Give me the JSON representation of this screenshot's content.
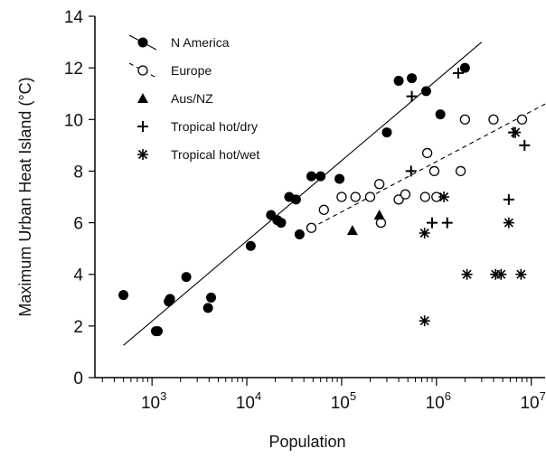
{
  "chart_data": {
    "type": "scatter",
    "title": "",
    "xlabel": "Population",
    "ylabel": "Maximum Urban Heat Island (°C)",
    "x_scale": "log",
    "xlim": [
      250,
      14000000
    ],
    "ylim": [
      0,
      14
    ],
    "x_ticks": [
      {
        "value": 1000,
        "base": "10",
        "exp": "3"
      },
      {
        "value": 10000,
        "base": "10",
        "exp": "4"
      },
      {
        "value": 100000,
        "base": "10",
        "exp": "5"
      },
      {
        "value": 1000000,
        "base": "10",
        "exp": "6"
      },
      {
        "value": 10000000,
        "base": "10",
        "exp": "7"
      }
    ],
    "y_ticks": [
      "0",
      "2",
      "4",
      "6",
      "8",
      "10",
      "12",
      "14"
    ],
    "grid": false,
    "legend_position": "top-left",
    "series": [
      {
        "name": "N America",
        "marker": "filled-circle",
        "points": [
          [
            500,
            3.2
          ],
          [
            1100,
            1.8
          ],
          [
            1150,
            1.8
          ],
          [
            1500,
            2.95
          ],
          [
            1550,
            3.05
          ],
          [
            2300,
            3.9
          ],
          [
            3900,
            2.7
          ],
          [
            4200,
            3.1
          ],
          [
            11000,
            5.1
          ],
          [
            18000,
            6.3
          ],
          [
            21000,
            6.1
          ],
          [
            23000,
            6.0
          ],
          [
            28000,
            7.0
          ],
          [
            33000,
            6.9
          ],
          [
            36000,
            5.55
          ],
          [
            48000,
            7.8
          ],
          [
            60000,
            7.8
          ],
          [
            95000,
            7.7
          ],
          [
            300000,
            9.5
          ],
          [
            400000,
            11.5
          ],
          [
            550000,
            11.6
          ],
          [
            780000,
            11.1
          ],
          [
            1100000,
            10.2
          ],
          [
            2000000,
            12.0
          ]
        ],
        "trend": {
          "x": [
            500,
            3000000
          ],
          "y": [
            1.25,
            13.0
          ],
          "style": "solid"
        }
      },
      {
        "name": "Europe",
        "marker": "open-circle",
        "points": [
          [
            48000,
            5.8
          ],
          [
            65000,
            6.5
          ],
          [
            100000,
            7.0
          ],
          [
            140000,
            7.0
          ],
          [
            200000,
            7.0
          ],
          [
            250000,
            7.5
          ],
          [
            260000,
            6.0
          ],
          [
            400000,
            6.9
          ],
          [
            470000,
            7.1
          ],
          [
            760000,
            7.0
          ],
          [
            800000,
            8.7
          ],
          [
            950000,
            8.0
          ],
          [
            1000000,
            7.0
          ],
          [
            1800000,
            8.0
          ],
          [
            2000000,
            10.0
          ],
          [
            4000000,
            10.0
          ],
          [
            8000000,
            10.0
          ]
        ],
        "trend": {
          "x": [
            48000,
            14000000
          ],
          "y": [
            5.8,
            10.6
          ],
          "style": "dashed"
        }
      },
      {
        "name": "Aus/NZ",
        "marker": "filled-triangle",
        "points": [
          [
            130000,
            5.7
          ],
          [
            250000,
            6.3
          ]
        ]
      },
      {
        "name": "Tropical hot/dry",
        "marker": "plus",
        "points": [
          [
            550000,
            10.9
          ],
          [
            540000,
            8.0
          ],
          [
            900000,
            6.0
          ],
          [
            1300000,
            6.0
          ],
          [
            1700000,
            11.8
          ],
          [
            5800000,
            6.9
          ],
          [
            6500000,
            9.5
          ],
          [
            8500000,
            9.0
          ]
        ]
      },
      {
        "name": "Tropical hot/wet",
        "marker": "asterisk",
        "points": [
          [
            750000,
            5.6
          ],
          [
            750000,
            2.2
          ],
          [
            1200000,
            7.0
          ],
          [
            2100000,
            4.0
          ],
          [
            4200000,
            4.0
          ],
          [
            4800000,
            4.0
          ],
          [
            5800000,
            6.0
          ],
          [
            7800000,
            4.0
          ],
          [
            6800000,
            9.5
          ]
        ]
      }
    ]
  }
}
